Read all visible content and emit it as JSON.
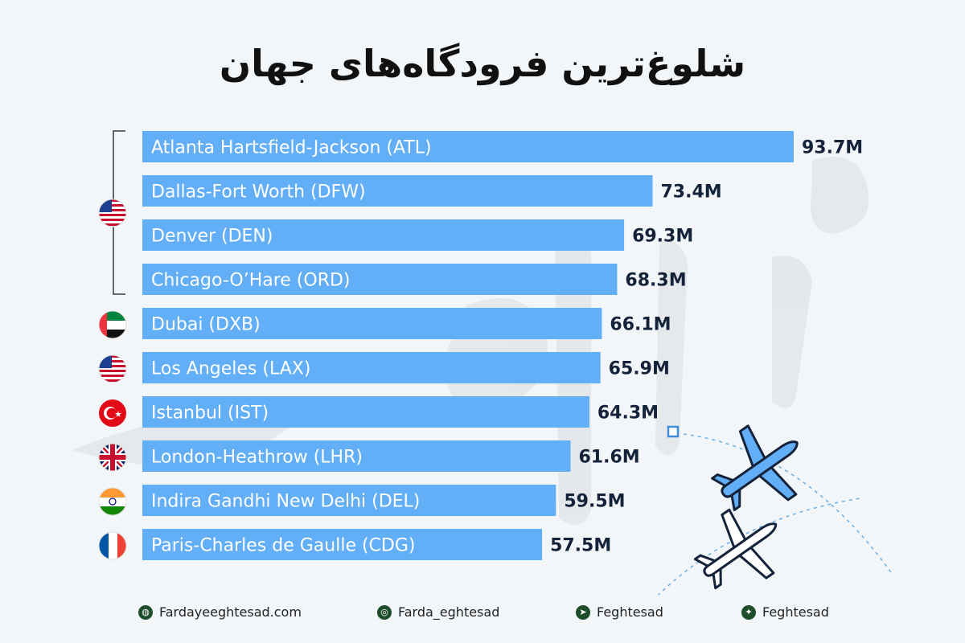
{
  "title": "شلوغ‌ترین فرودگاه‌های جهان",
  "chart_data": {
    "type": "bar",
    "orientation": "horizontal",
    "categories": [
      "Atlanta Hartsfield-Jackson (ATL)",
      "Dallas-Fort Worth (DFW)",
      "Denver (DEN)",
      "Chicago-O’Hare (ORD)",
      "Dubai (DXB)",
      "Los Angeles (LAX)",
      "Istanbul (IST)",
      "London-Heathrow (LHR)",
      "Indira Gandhi New Delhi (DEL)",
      "Paris-Charles de Gaulle (CDG)"
    ],
    "values": [
      93.7,
      73.4,
      69.3,
      68.3,
      66.1,
      65.9,
      64.3,
      61.6,
      59.5,
      57.5
    ],
    "value_labels": [
      "93.7M",
      "73.4M",
      "69.3M",
      "68.3M",
      "66.1M",
      "65.9M",
      "64.3M",
      "61.6M",
      "59.5M",
      "57.5M"
    ],
    "country_flags": [
      "usa-flag",
      "uae-flag",
      "usa-flag",
      "turkey-flag",
      "uk-flag",
      "india-flag",
      "france-flag"
    ],
    "bar_color": "#62aef7",
    "label_color": "#ffffff",
    "value_color": "#14233a"
  },
  "footer": {
    "items": [
      {
        "icon": "globe-icon",
        "text": "Fardayeeghtesad.com"
      },
      {
        "icon": "instagram-icon",
        "text": "Farda_eghtesad"
      },
      {
        "icon": "telegram-icon",
        "text": "Feghtesad"
      },
      {
        "icon": "twitter-icon",
        "text": "Feghtesad"
      }
    ]
  }
}
